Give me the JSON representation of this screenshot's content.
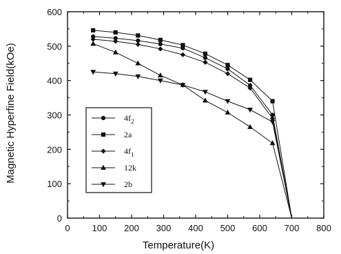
{
  "chart_data": {
    "type": "line",
    "xlabel": "Temperature(K)",
    "ylabel": "Magnetic Hyperfine Field(kOe)",
    "xlim": [
      0,
      800
    ],
    "ylim": [
      0,
      600
    ],
    "xticks": [
      0,
      100,
      200,
      300,
      400,
      500,
      600,
      700,
      800
    ],
    "yticks": [
      0,
      100,
      200,
      300,
      400,
      500,
      600
    ],
    "x_tick_labels": [
      "0",
      "100",
      "200",
      "300",
      "400",
      "500",
      "600",
      "700",
      "800"
    ],
    "y_tick_labels": [
      "0",
      "100",
      "200",
      "300",
      "400",
      "500",
      "600"
    ],
    "grid": false,
    "legend_position": "center-left",
    "series": [
      {
        "name": "4f2",
        "label_main": "4f",
        "label_sub": "2",
        "marker": "circle",
        "x": [
          80,
          150,
          220,
          290,
          360,
          430,
          500,
          570,
          640,
          700
        ],
        "y": [
          528,
          523,
          516,
          506,
          494,
          466,
          434,
          386,
          300,
          0
        ]
      },
      {
        "name": "2a",
        "label_main": "2a",
        "label_sub": "",
        "marker": "square",
        "x": [
          80,
          150,
          220,
          290,
          360,
          430,
          500,
          570,
          640,
          700
        ],
        "y": [
          546,
          540,
          531,
          518,
          503,
          478,
          445,
          402,
          340,
          0
        ]
      },
      {
        "name": "4f1",
        "label_main": "4f",
        "label_sub": "1",
        "marker": "diamond",
        "x": [
          80,
          150,
          220,
          290,
          360,
          430,
          500,
          570,
          640,
          700
        ],
        "y": [
          520,
          514,
          505,
          492,
          475,
          453,
          420,
          378,
          290,
          0
        ]
      },
      {
        "name": "12k",
        "label_main": "12k",
        "label_sub": "",
        "marker": "triangle-up",
        "x": [
          80,
          150,
          220,
          290,
          360,
          430,
          500,
          570,
          640,
          700
        ],
        "y": [
          507,
          482,
          450,
          415,
          387,
          342,
          307,
          265,
          218,
          0
        ]
      },
      {
        "name": "2b",
        "label_main": "2b",
        "label_sub": "",
        "marker": "triangle-down",
        "x": [
          80,
          150,
          220,
          290,
          360,
          430,
          500,
          570,
          640,
          700
        ],
        "y": [
          425,
          420,
          412,
          400,
          387,
          367,
          340,
          315,
          280,
          0
        ]
      }
    ]
  }
}
